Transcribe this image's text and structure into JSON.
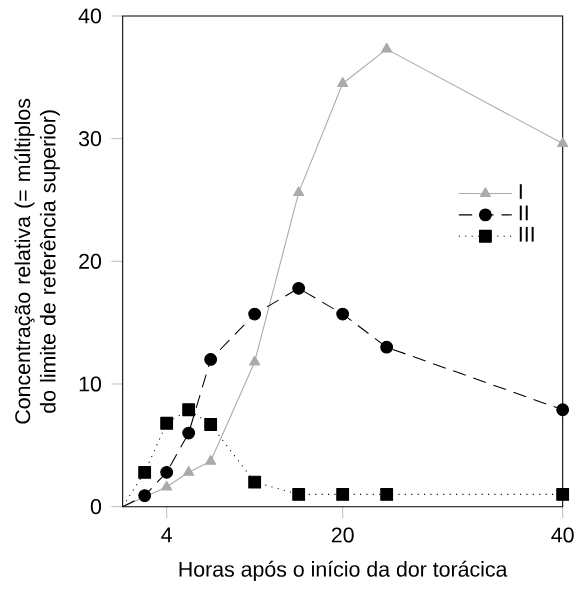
{
  "chart_data": {
    "type": "line",
    "xlabel": "Horas após o início da dor torácica",
    "ylabel": "Concentração relativa (= múltiplos do limite de referência superior)",
    "xlim": [
      0,
      40
    ],
    "ylim": [
      0,
      40
    ],
    "xticks": [
      4,
      20,
      40
    ],
    "yticks": [
      0,
      10,
      20,
      30,
      40
    ],
    "legend": "top right",
    "series": [
      {
        "name": "I",
        "color": "#aaaaaa",
        "marker": "triangle",
        "line_style": "solid",
        "x": [
          0,
          4,
          6,
          8,
          12,
          16,
          20,
          24,
          40
        ],
        "values": [
          0,
          1.6,
          2.8,
          3.7,
          11.8,
          25.6,
          34.5,
          37.3,
          29.6
        ]
      },
      {
        "name": "II",
        "color": "#000000",
        "marker": "circle",
        "line_style": "dashed",
        "x": [
          0,
          2,
          4,
          6,
          8,
          12,
          16,
          20,
          24,
          40
        ],
        "values": [
          0,
          0.9,
          2.8,
          6,
          12,
          15.7,
          17.8,
          15.7,
          13,
          7.9
        ]
      },
      {
        "name": "III",
        "color": "#000000",
        "marker": "square",
        "line_style": "dotted",
        "x": [
          0,
          2,
          4,
          6,
          8,
          12,
          16,
          20,
          24,
          40
        ],
        "values": [
          0,
          2.8,
          6.8,
          7.9,
          6.7,
          2,
          1,
          1,
          1,
          1
        ]
      }
    ]
  }
}
